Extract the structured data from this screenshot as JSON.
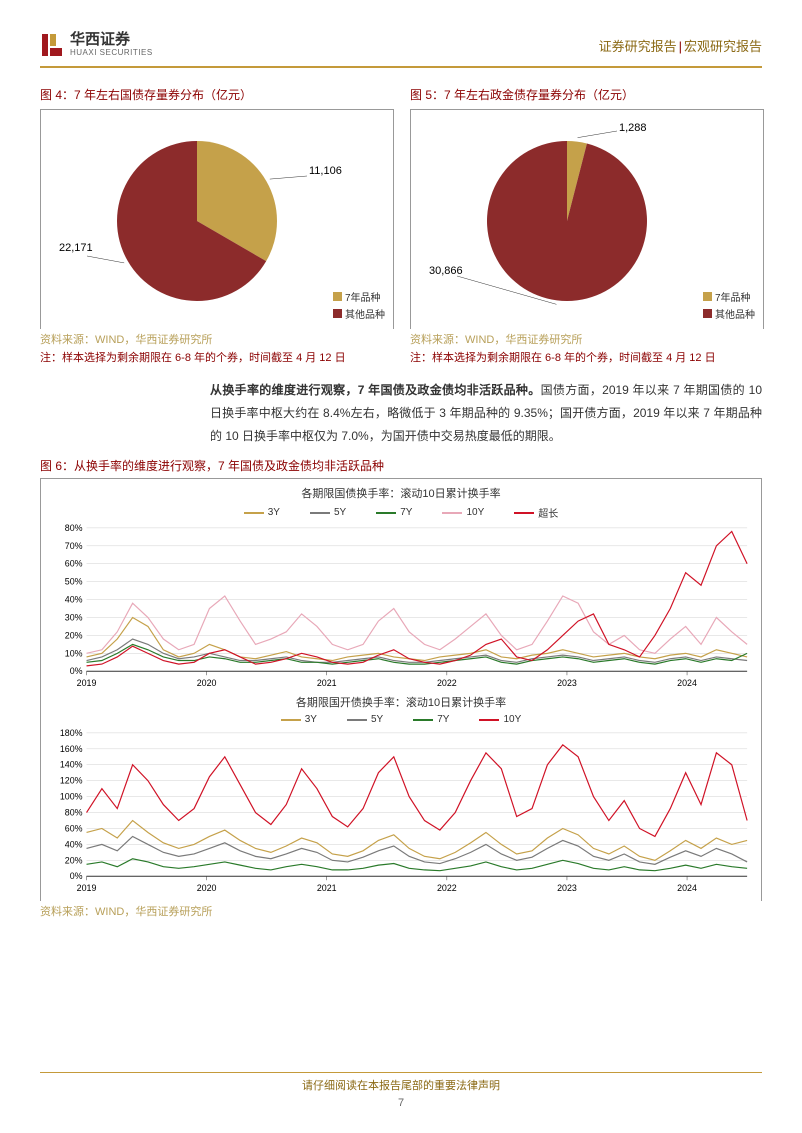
{
  "header": {
    "logo_cn": "华西证券",
    "logo_en": "HUAXI SECURITIES",
    "right_a": "证券研究报告",
    "right_b": "宏观研究报告"
  },
  "fig4": {
    "title": "图 4：7 年左右国债存量券分布（亿元）",
    "type": "pie",
    "slices": [
      {
        "name": "7年品种",
        "value": 11106,
        "label": "11,106",
        "color": "#c5a14a"
      },
      {
        "name": "其他品种",
        "value": 22171,
        "label": "22,171",
        "color": "#8c2b2b"
      }
    ],
    "legend": [
      "7年品种",
      "其他品种"
    ],
    "source": "资料来源：WIND，华西证券研究所",
    "note": "注：样本选择为剩余期限在 6-8 年的个券，时间截至 4 月 12 日"
  },
  "fig5": {
    "title": "图 5：7 年左右政金债存量券分布（亿元）",
    "type": "pie",
    "slices": [
      {
        "name": "7年品种",
        "value": 1288,
        "label": "1,288",
        "color": "#c5a14a"
      },
      {
        "name": "其他品种",
        "value": 30866,
        "label": "30,866",
        "color": "#8c2b2b"
      }
    ],
    "legend": [
      "7年品种",
      "其他品种"
    ],
    "source": "资料来源：WIND，华西证券研究所",
    "note": "注：样本选择为剩余期限在 6-8 年的个券，时间截至 4 月 12 日"
  },
  "paragraph": {
    "bold": "从换手率的维度进行观察，7 年国债及政金债均非活跃品种。",
    "rest": "国债方面，2019 年以来 7 年期国债的 10 日换手率中枢大约在 8.4%左右，略微低于 3 年期品种的 9.35%；国开债方面，2019 年以来 7 年期品种的 10 日换手率中枢仅为 7.0%，为国开债中交易热度最低的期限。"
  },
  "fig6": {
    "title": "图 6：从换手率的维度进行观察，7 年国债及政金债均非活跃品种",
    "source": "资料来源：WIND，华西证券研究所",
    "chart1": {
      "title": "各期限国债换手率：滚动10日累计换手率",
      "type": "line",
      "ylim": [
        0,
        80
      ],
      "ytick_step": 10,
      "xlabels": [
        "2019",
        "2020",
        "2021",
        "2022",
        "2023",
        "2024"
      ],
      "grid_color": "#d0d0d0",
      "series": [
        {
          "name": "3Y",
          "color": "#c5a14a",
          "vals": [
            8,
            10,
            18,
            30,
            25,
            12,
            8,
            10,
            15,
            12,
            8,
            7,
            9,
            11,
            8,
            7,
            6,
            8,
            9,
            10,
            8,
            7,
            6,
            8,
            9,
            10,
            12,
            8,
            7,
            9,
            10,
            12,
            10,
            8,
            9,
            10,
            8,
            7,
            9,
            10,
            8,
            12,
            10,
            8
          ]
        },
        {
          "name": "5Y",
          "color": "#7a7a7a",
          "vals": [
            6,
            8,
            12,
            18,
            15,
            10,
            7,
            8,
            10,
            8,
            6,
            6,
            7,
            8,
            6,
            5,
            5,
            6,
            7,
            8,
            6,
            5,
            5,
            6,
            7,
            8,
            9,
            6,
            5,
            7,
            8,
            9,
            8,
            6,
            7,
            8,
            6,
            5,
            7,
            8,
            6,
            8,
            7,
            6
          ]
        },
        {
          "name": "7Y",
          "color": "#2a7a2a",
          "vals": [
            5,
            6,
            10,
            15,
            12,
            8,
            6,
            6,
            8,
            7,
            5,
            5,
            6,
            7,
            5,
            5,
            4,
            5,
            6,
            7,
            5,
            4,
            4,
            5,
            6,
            7,
            8,
            5,
            4,
            6,
            7,
            8,
            7,
            5,
            6,
            7,
            5,
            4,
            6,
            7,
            5,
            7,
            6,
            10
          ]
        },
        {
          "name": "10Y",
          "color": "#e8a8b8",
          "vals": [
            10,
            12,
            22,
            38,
            30,
            18,
            12,
            15,
            35,
            42,
            28,
            15,
            18,
            22,
            32,
            25,
            15,
            12,
            15,
            28,
            35,
            22,
            15,
            12,
            18,
            25,
            32,
            20,
            12,
            15,
            28,
            42,
            38,
            22,
            15,
            20,
            12,
            10,
            18,
            25,
            15,
            30,
            22,
            15
          ]
        },
        {
          "name": "超长",
          "color": "#d01226",
          "vals": [
            3,
            4,
            8,
            14,
            10,
            6,
            4,
            5,
            10,
            12,
            8,
            4,
            5,
            7,
            10,
            8,
            5,
            4,
            5,
            9,
            12,
            7,
            5,
            4,
            6,
            9,
            15,
            18,
            8,
            6,
            12,
            20,
            28,
            32,
            15,
            12,
            8,
            20,
            35,
            55,
            48,
            70,
            78,
            60
          ]
        }
      ]
    },
    "chart2": {
      "title": "各期限国开债换手率：滚动10日累计换手率",
      "type": "line",
      "ylim": [
        0,
        180
      ],
      "ytick_step": 20,
      "xlabels": [
        "2019",
        "2020",
        "2021",
        "2022",
        "2023",
        "2024"
      ],
      "grid_color": "#d0d0d0",
      "series": [
        {
          "name": "3Y",
          "color": "#c5a14a",
          "vals": [
            55,
            60,
            48,
            70,
            55,
            42,
            35,
            40,
            50,
            58,
            45,
            35,
            30,
            38,
            48,
            42,
            28,
            25,
            32,
            45,
            52,
            35,
            25,
            22,
            30,
            42,
            55,
            40,
            28,
            32,
            48,
            60,
            52,
            35,
            28,
            38,
            25,
            20,
            32,
            45,
            35,
            48,
            40,
            45
          ]
        },
        {
          "name": "5Y",
          "color": "#7a7a7a",
          "vals": [
            35,
            40,
            32,
            50,
            40,
            30,
            25,
            28,
            35,
            42,
            32,
            25,
            22,
            28,
            35,
            30,
            20,
            18,
            24,
            32,
            38,
            25,
            18,
            16,
            22,
            30,
            40,
            28,
            20,
            24,
            35,
            45,
            38,
            25,
            20,
            28,
            18,
            15,
            24,
            32,
            25,
            35,
            28,
            18
          ]
        },
        {
          "name": "7Y",
          "color": "#2a7a2a",
          "vals": [
            15,
            18,
            12,
            22,
            18,
            12,
            10,
            12,
            15,
            18,
            14,
            10,
            8,
            12,
            15,
            12,
            8,
            8,
            10,
            14,
            16,
            10,
            8,
            7,
            10,
            13,
            18,
            12,
            8,
            10,
            15,
            20,
            16,
            10,
            8,
            12,
            8,
            7,
            10,
            14,
            10,
            15,
            12,
            10
          ]
        },
        {
          "name": "10Y",
          "color": "#d01226",
          "vals": [
            80,
            110,
            85,
            140,
            120,
            90,
            70,
            85,
            125,
            150,
            115,
            80,
            65,
            90,
            135,
            110,
            75,
            62,
            85,
            130,
            150,
            100,
            70,
            58,
            80,
            120,
            155,
            135,
            75,
            85,
            140,
            165,
            150,
            100,
            70,
            95,
            60,
            50,
            85,
            130,
            90,
            155,
            140,
            70
          ]
        }
      ]
    }
  },
  "footer": {
    "text": "请仔细阅读在本报告尾部的重要法律声明",
    "page_num": "7"
  }
}
